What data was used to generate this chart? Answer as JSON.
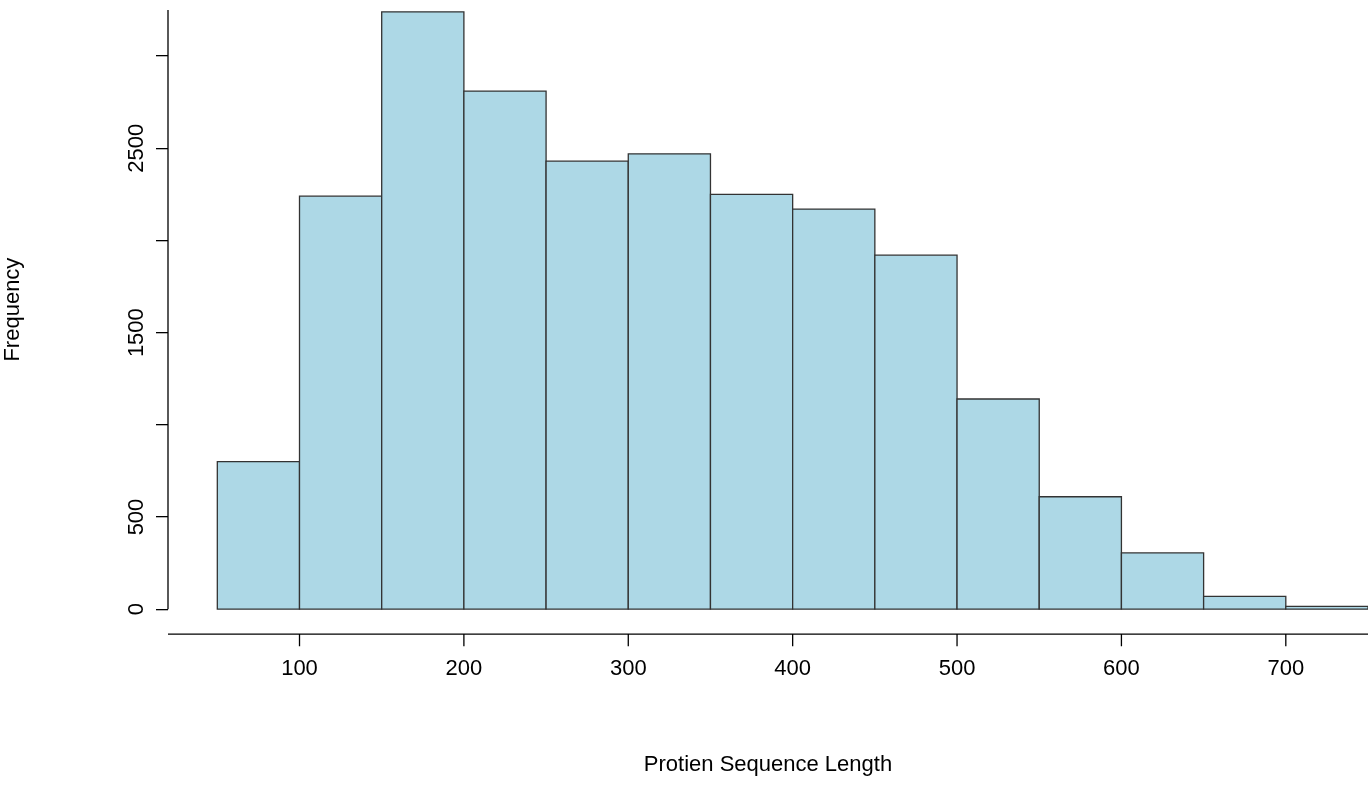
{
  "chart_data": {
    "type": "histogram",
    "xlabel": "Protien Sequence Length",
    "ylabel": "Frequency",
    "bins": [
      50,
      100,
      150,
      200,
      250,
      300,
      350,
      400,
      450,
      500,
      550,
      600,
      650,
      700,
      750
    ],
    "values": [
      800,
      2240,
      3240,
      2810,
      2430,
      2470,
      2250,
      2170,
      1920,
      1140,
      610,
      305,
      70,
      15
    ],
    "color": "#add8e6",
    "xlim": [
      20,
      750
    ],
    "xticks": [
      100,
      200,
      300,
      400,
      500,
      600,
      700
    ],
    "ylim": [
      0,
      3250
    ],
    "yticks": [
      0,
      500,
      {
        "value": 1000,
        "label": null
      },
      1500,
      {
        "value": 2000,
        "label": null
      },
      2500,
      {
        "value": 3000,
        "label": null
      }
    ],
    "grid": false
  }
}
